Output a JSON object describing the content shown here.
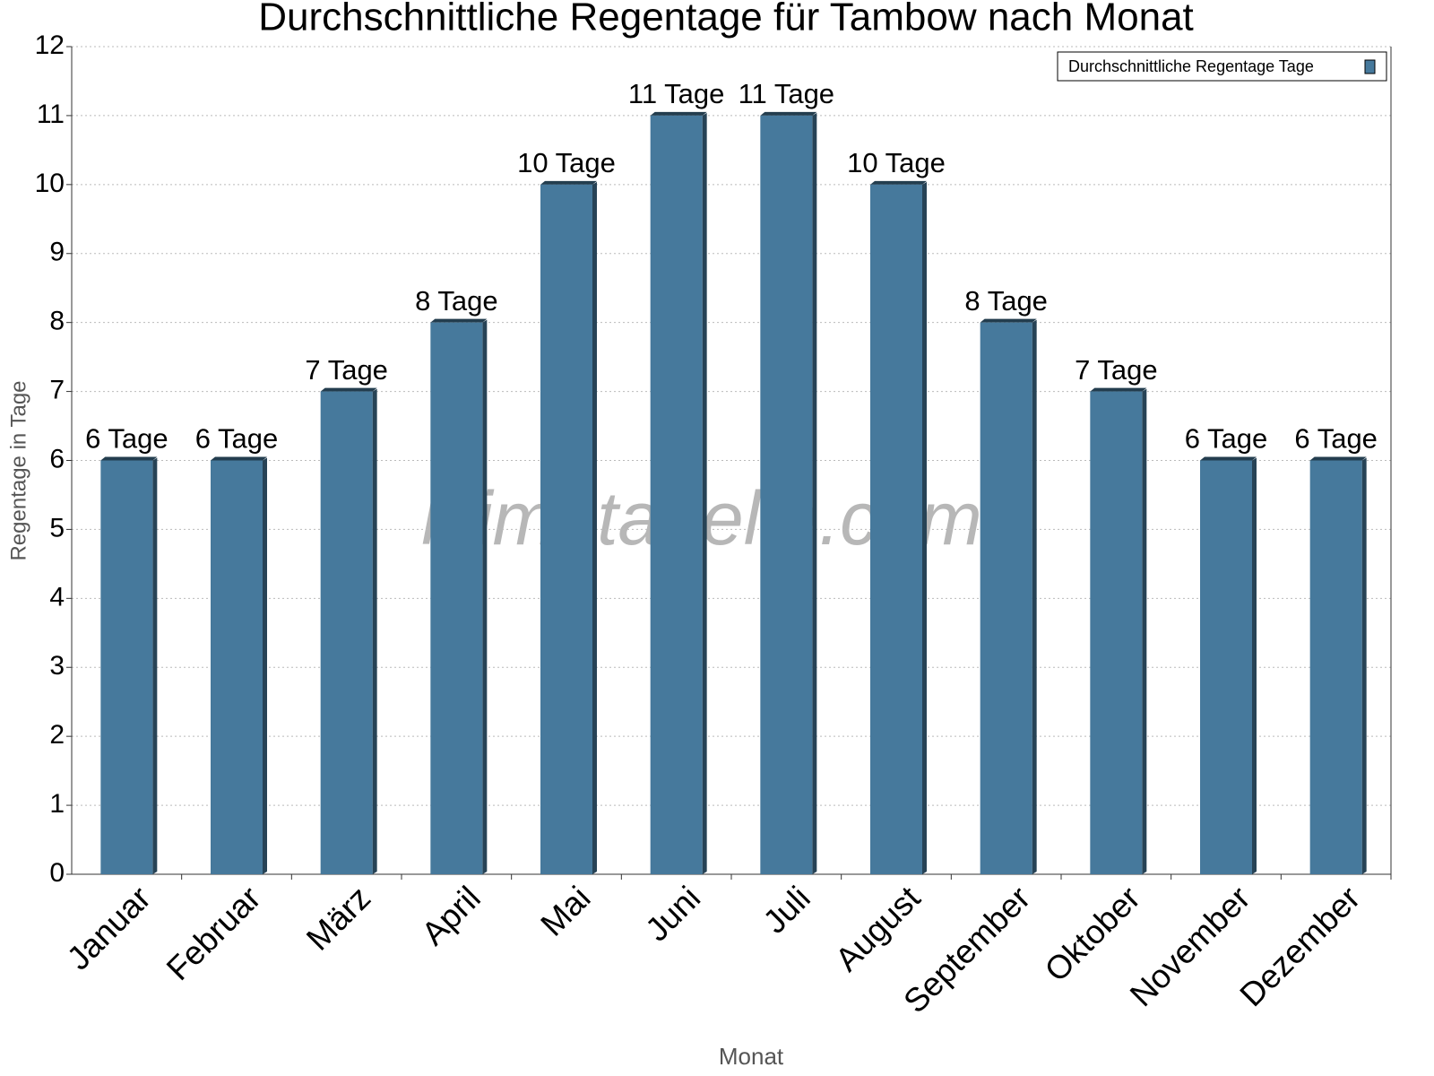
{
  "chart_data": {
    "type": "bar",
    "title": "Durchschnittliche Regentage für Tambow nach Monat",
    "x_label": "Monat",
    "y_label": "Regentage in Tage",
    "watermark": "klimatabelle.com",
    "categories": [
      "Januar",
      "Februar",
      "März",
      "April",
      "Mai",
      "Juni",
      "Juli",
      "August",
      "September",
      "Oktober",
      "November",
      "Dezember"
    ],
    "series": [
      {
        "name": "Durchschnittliche Regentage Tage",
        "color": "#46799c",
        "values": [
          6,
          6,
          7,
          8,
          10,
          11,
          11,
          10,
          8,
          7,
          6,
          6
        ],
        "value_labels": [
          "6 Tage",
          "6 Tage",
          "7 Tage",
          "8 Tage",
          "10 Tage",
          "11 Tage",
          "11 Tage",
          "10 Tage",
          "8 Tage",
          "7 Tage",
          "6 Tage",
          "6 Tage"
        ]
      }
    ],
    "ylim": [
      0,
      12
    ],
    "yticks": [
      0,
      1,
      2,
      3,
      4,
      5,
      6,
      7,
      8,
      9,
      10,
      11,
      12
    ],
    "grid": true,
    "legend_loc": "upper right"
  }
}
